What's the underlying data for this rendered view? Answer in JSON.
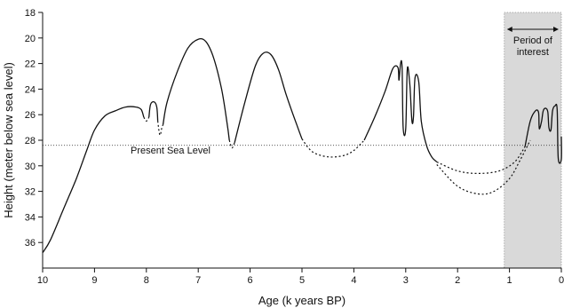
{
  "chart_data": {
    "type": "line",
    "xlabel": "Age (k years BP)",
    "ylabel": "Height (meter below sea level)",
    "xlim": [
      10,
      0
    ],
    "ylim": [
      18,
      38
    ],
    "x_direction": "reversed",
    "y_direction": "reversed",
    "x_ticks": [
      "10",
      "9",
      "8",
      "7",
      "6",
      "5",
      "4",
      "3",
      "2",
      "1",
      "0"
    ],
    "y_ticks": [
      "18",
      "20",
      "22",
      "24",
      "26",
      "28",
      "30",
      "32",
      "34",
      "36"
    ],
    "grid": false,
    "reference_line": {
      "label": "Present Sea Level",
      "y": 28.4,
      "style": "dotted"
    },
    "highlight_band": {
      "label_line1": "Period of",
      "label_line2": "interest",
      "x_from": 1.1,
      "x_to": 0,
      "color": "#d9d9d9"
    },
    "series": [
      {
        "style": "solid",
        "points": [
          [
            10.0,
            36.8
          ],
          [
            9.85,
            35.8
          ],
          [
            9.6,
            33.4
          ],
          [
            9.35,
            31.0
          ],
          [
            9.15,
            28.8
          ],
          [
            9.0,
            27.2
          ],
          [
            8.8,
            26.1
          ],
          [
            8.6,
            25.7
          ],
          [
            8.4,
            25.4
          ],
          [
            8.2,
            25.4
          ],
          [
            8.1,
            25.6
          ],
          [
            8.05,
            26.2
          ]
        ]
      },
      {
        "style": "dotted",
        "points": [
          [
            8.05,
            26.2
          ],
          [
            8.0,
            26.5
          ],
          [
            7.95,
            26.2
          ]
        ]
      },
      {
        "style": "solid",
        "points": [
          [
            7.95,
            26.2
          ],
          [
            7.92,
            25.2
          ],
          [
            7.85,
            25.0
          ],
          [
            7.8,
            25.4
          ],
          [
            7.78,
            26.5
          ]
        ]
      },
      {
        "style": "dotted",
        "points": [
          [
            7.78,
            26.5
          ],
          [
            7.74,
            27.6
          ],
          [
            7.7,
            27.0
          ],
          [
            7.68,
            26.8
          ]
        ]
      },
      {
        "style": "solid",
        "points": [
          [
            7.68,
            26.8
          ],
          [
            7.6,
            25.0
          ],
          [
            7.4,
            22.6
          ],
          [
            7.2,
            20.8
          ],
          [
            7.0,
            20.1
          ],
          [
            6.85,
            20.3
          ],
          [
            6.7,
            21.6
          ],
          [
            6.55,
            24.0
          ],
          [
            6.45,
            26.5
          ],
          [
            6.4,
            28.0
          ]
        ]
      },
      {
        "style": "dotted",
        "points": [
          [
            6.4,
            28.0
          ],
          [
            6.35,
            28.6
          ],
          [
            6.3,
            28.2
          ]
        ]
      },
      {
        "style": "solid",
        "points": [
          [
            6.3,
            28.2
          ],
          [
            6.1,
            25.0
          ],
          [
            5.9,
            22.2
          ],
          [
            5.75,
            21.2
          ],
          [
            5.6,
            21.3
          ],
          [
            5.45,
            22.5
          ],
          [
            5.3,
            24.5
          ],
          [
            5.1,
            26.8
          ],
          [
            5.0,
            27.9
          ]
        ]
      },
      {
        "style": "dotted",
        "points": [
          [
            5.0,
            27.9
          ],
          [
            4.8,
            28.9
          ],
          [
            4.5,
            29.3
          ],
          [
            4.2,
            29.2
          ],
          [
            4.0,
            28.8
          ],
          [
            3.8,
            28.0
          ]
        ]
      },
      {
        "style": "solid",
        "points": [
          [
            3.8,
            28.0
          ],
          [
            3.6,
            26.2
          ],
          [
            3.4,
            24.2
          ],
          [
            3.25,
            22.4
          ],
          [
            3.15,
            22.3
          ],
          [
            3.13,
            23.3
          ],
          [
            3.1,
            22.0
          ],
          [
            3.07,
            22.3
          ],
          [
            3.05,
            27.0
          ],
          [
            3.0,
            27.1
          ],
          [
            2.97,
            22.4
          ],
          [
            2.92,
            23.7
          ],
          [
            2.88,
            26.5
          ],
          [
            2.85,
            26.1
          ],
          [
            2.82,
            23.1
          ],
          [
            2.75,
            23.4
          ],
          [
            2.7,
            26.5
          ],
          [
            2.6,
            28.4
          ],
          [
            2.5,
            29.3
          ],
          [
            2.4,
            29.7
          ]
        ]
      },
      {
        "style": "dotted",
        "points": [
          [
            2.4,
            29.7
          ],
          [
            2.0,
            30.4
          ],
          [
            1.6,
            30.6
          ],
          [
            1.2,
            30.4
          ],
          [
            0.9,
            29.7
          ],
          [
            0.7,
            28.5
          ]
        ]
      },
      {
        "style": "dotted",
        "points": [
          [
            2.4,
            29.9
          ],
          [
            2.0,
            31.6
          ],
          [
            1.6,
            32.2
          ],
          [
            1.3,
            32.0
          ],
          [
            1.0,
            31.0
          ],
          [
            0.8,
            29.6
          ],
          [
            0.6,
            28.0
          ]
        ]
      },
      {
        "style": "solid",
        "points": [
          [
            0.7,
            28.5
          ],
          [
            0.6,
            26.5
          ],
          [
            0.5,
            25.7
          ],
          [
            0.44,
            25.8
          ],
          [
            0.43,
            26.8
          ],
          [
            0.42,
            27.1
          ],
          [
            0.38,
            26.5
          ],
          [
            0.35,
            25.7
          ],
          [
            0.3,
            25.5
          ],
          [
            0.26,
            25.8
          ],
          [
            0.24,
            27.0
          ],
          [
            0.2,
            27.2
          ],
          [
            0.17,
            25.7
          ],
          [
            0.12,
            25.3
          ],
          [
            0.08,
            25.6
          ],
          [
            0.06,
            29.4
          ],
          [
            0.0,
            29.5
          ],
          [
            0.0,
            27.7
          ]
        ]
      }
    ]
  }
}
